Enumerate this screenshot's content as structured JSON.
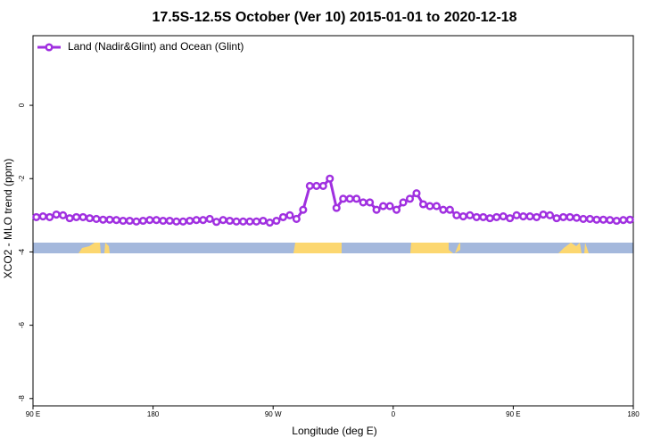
{
  "chart_data": {
    "type": "line",
    "title": "17.5S-12.5S October (Ver 10)   2015-01-01 to 2020-12-18",
    "xlabel": "Longitude (deg E)",
    "ylabel": "XCO2 - MLO trend (ppm)",
    "xlim": [
      90,
      540
    ],
    "ylim": [
      -8.2,
      1.9
    ],
    "xticks": [
      {
        "value": 90,
        "label": "90 E"
      },
      {
        "value": 180,
        "label": "180"
      },
      {
        "value": 270,
        "label": "90 W"
      },
      {
        "value": 360,
        "label": "0"
      },
      {
        "value": 450,
        "label": "90 E"
      },
      {
        "value": 540,
        "label": "180"
      }
    ],
    "yticks": [
      -8,
      -6,
      -4,
      -2,
      0
    ],
    "legend": "top-left",
    "x": [
      92.5,
      97.5,
      102.5,
      107.5,
      112.5,
      117.5,
      122.5,
      127.5,
      132.5,
      137.5,
      142.5,
      147.5,
      152.5,
      157.5,
      162.5,
      167.5,
      172.5,
      177.5,
      182.5,
      187.5,
      192.5,
      197.5,
      202.5,
      207.5,
      212.5,
      217.5,
      222.5,
      227.5,
      232.5,
      237.5,
      242.5,
      247.5,
      252.5,
      257.5,
      262.5,
      267.5,
      272.5,
      277.5,
      282.5,
      287.5,
      292.5,
      297.5,
      302.5,
      307.5,
      312.5,
      317.5,
      322.5,
      327.5,
      332.5,
      337.5,
      342.5,
      347.5,
      352.5,
      357.5,
      362.5,
      367.5,
      372.5,
      377.5,
      382.5,
      387.5,
      392.5,
      397.5,
      402.5,
      407.5,
      412.5,
      417.5,
      422.5,
      427.5,
      432.5,
      437.5,
      442.5,
      447.5,
      452.5,
      457.5,
      462.5,
      467.5,
      472.5,
      477.5,
      482.5,
      487.5,
      492.5,
      497.5,
      502.5,
      507.5,
      512.5,
      517.5,
      522.5,
      527.5,
      532.5,
      537.5
    ],
    "series": [
      {
        "name": "Land (Nadir&Glint) and Ocean (Glint)",
        "color": "#a030e0",
        "values": [
          -3.05,
          -3.03,
          -3.05,
          -2.98,
          -3.0,
          -3.08,
          -3.05,
          -3.05,
          -3.08,
          -3.1,
          -3.12,
          -3.12,
          -3.13,
          -3.15,
          -3.15,
          -3.17,
          -3.15,
          -3.13,
          -3.13,
          -3.15,
          -3.15,
          -3.17,
          -3.17,
          -3.15,
          -3.13,
          -3.13,
          -3.1,
          -3.18,
          -3.13,
          -3.15,
          -3.17,
          -3.17,
          -3.17,
          -3.17,
          -3.15,
          -3.2,
          -3.15,
          -3.05,
          -3.0,
          -3.1,
          -2.85,
          -2.2,
          -2.2,
          -2.2,
          -2.0,
          -2.8,
          -2.55,
          -2.55,
          -2.55,
          -2.65,
          -2.65,
          -2.85,
          -2.75,
          -2.75,
          -2.85,
          -2.65,
          -2.55,
          -2.4,
          -2.7,
          -2.75,
          -2.75,
          -2.85,
          -2.85,
          -3.0,
          -3.03,
          -3.0,
          -3.05,
          -3.05,
          -3.08,
          -3.05,
          -3.03,
          -3.08,
          -3.0,
          -3.03,
          -3.03,
          -3.05,
          -2.98,
          -3.0,
          -3.08,
          -3.05,
          -3.05,
          -3.07,
          -3.1,
          -3.1,
          -3.12,
          -3.12,
          -3.13,
          -3.15,
          -3.13,
          -3.12
        ]
      }
    ]
  }
}
